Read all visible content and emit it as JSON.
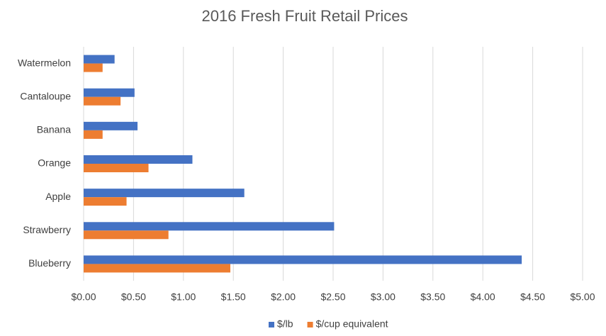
{
  "chart_data": {
    "type": "bar",
    "orientation": "horizontal",
    "title": "2016 Fresh Fruit Retail Prices",
    "categories": [
      "Watermelon",
      "Cantaloupe",
      "Banana",
      "Orange",
      "Apple",
      "Strawberry",
      "Blueberry"
    ],
    "series": [
      {
        "name": "$/lb",
        "color": "#4472c4",
        "values": [
          0.31,
          0.51,
          0.54,
          1.09,
          1.61,
          2.51,
          4.39
        ]
      },
      {
        "name": "$/cup equivalent",
        "color": "#ed7d31",
        "values": [
          0.19,
          0.37,
          0.19,
          0.65,
          0.43,
          0.85,
          1.47
        ]
      }
    ],
    "xlim": [
      0,
      5
    ],
    "xticks": [
      {
        "value": 0,
        "label": "$0.00"
      },
      {
        "value": 0.5,
        "label": "$0.50"
      },
      {
        "value": 1,
        "label": "$1.00"
      },
      {
        "value": 1.5,
        "label": "$1.50"
      },
      {
        "value": 2,
        "label": "$2.00"
      },
      {
        "value": 2.5,
        "label": "$2.50"
      },
      {
        "value": 3,
        "label": "$3.00"
      },
      {
        "value": 3.5,
        "label": "$3.50"
      },
      {
        "value": 4,
        "label": "$4.00"
      },
      {
        "value": 4.5,
        "label": "$4.50"
      },
      {
        "value": 5,
        "label": "$5.00"
      }
    ],
    "grid": true,
    "legend": "bottom"
  }
}
